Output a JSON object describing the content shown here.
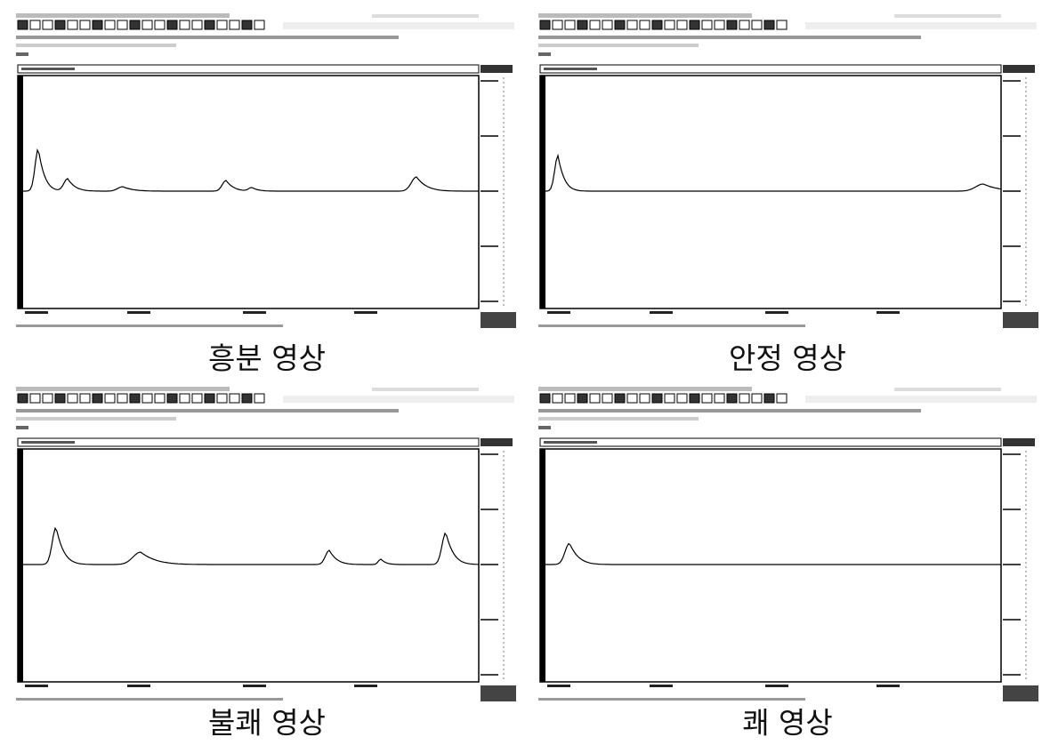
{
  "panels": [
    {
      "caption": "흥분 영상"
    },
    {
      "caption": "안정 영상"
    },
    {
      "caption": "불쾌 영상"
    },
    {
      "caption": "쾌 영상"
    }
  ]
}
